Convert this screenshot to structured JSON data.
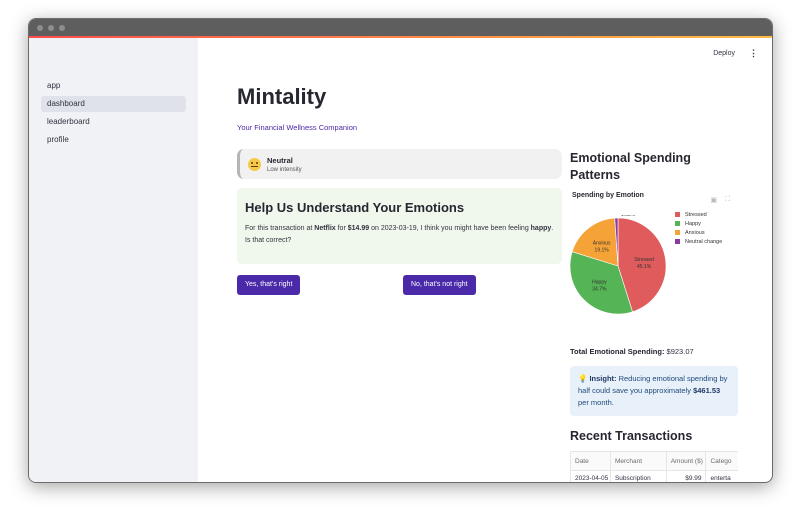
{
  "nav": {
    "items": [
      {
        "label": "app",
        "active": false
      },
      {
        "label": "dashboard",
        "active": true
      },
      {
        "label": "leaderboard",
        "active": false
      },
      {
        "label": "profile",
        "active": false
      }
    ]
  },
  "topbar": {
    "deploy_label": "Deploy",
    "menu_icon": "kebab-menu-icon"
  },
  "header": {
    "title": "Mintality",
    "subtitle": "Your Financial Wellness Companion"
  },
  "mood": {
    "name": "Neutral",
    "intensity": "Low intensity",
    "icon": "neutral-face-icon"
  },
  "question": {
    "title": "Help Us Understand Your Emotions",
    "text_1": "For this transaction at ",
    "merchant": "Netflix",
    "text_2": " for ",
    "amount": "$14.99",
    "text_3": " on 2023-03-19, I think you might have been feeling ",
    "emotion": "happy",
    "text_4": ". Is that correct?"
  },
  "buttons": {
    "yes": "Yes, that's right",
    "no": "No, that's not right"
  },
  "emotional_section": {
    "title": "Emotional Spending Patterns"
  },
  "chart_data": {
    "type": "pie",
    "title": "Spending by Emotion",
    "labels": [
      "Stressed",
      "Happy",
      "Anxious",
      "Neutral change"
    ],
    "values": [
      45.1,
      34.7,
      19.1,
      1.08
    ],
    "value_labels": [
      "45.1%",
      "34.7%",
      "19.1%",
      "1.08%"
    ],
    "colors": [
      "#e05c5c",
      "#55b455",
      "#f5a236",
      "#8b3aa0"
    ],
    "legend_position": "top-right"
  },
  "total": {
    "label": "Total Emotional Spending:",
    "value": "$923.07"
  },
  "insight": {
    "label": "Insight:",
    "text_1": " Reducing emotional spending by half could save you approximately ",
    "amount": "$461.53",
    "text_2": " per month."
  },
  "transactions": {
    "title": "Recent Transactions",
    "columns": [
      "Date",
      "Merchant",
      "Amount ($)",
      "Catego"
    ],
    "rows": [
      [
        "2023-04-05",
        "Subscription",
        "$9.99",
        "enterta"
      ]
    ]
  }
}
